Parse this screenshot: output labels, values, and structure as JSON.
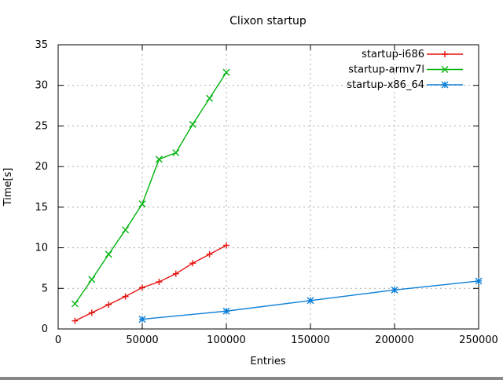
{
  "chart_data": {
    "type": "line",
    "title": "Clixon startup",
    "xlabel": "Entries",
    "ylabel": "Time[s]",
    "xlim": [
      0,
      250000
    ],
    "ylim": [
      0,
      35
    ],
    "xticks": [
      0,
      50000,
      100000,
      150000,
      200000,
      250000
    ],
    "yticks": [
      0,
      5,
      10,
      15,
      20,
      25,
      30,
      35
    ],
    "grid": true,
    "legend_position": "top-right-inside",
    "background": "#ffffff",
    "grid_color": "#ababab",
    "axis_color": "#000000",
    "series": [
      {
        "name": "startup-i686",
        "color": "#e81410",
        "marker": "plus",
        "points": [
          [
            10000,
            1.0
          ],
          [
            20000,
            2.0
          ],
          [
            30000,
            3.0
          ],
          [
            40000,
            4.0
          ],
          [
            50000,
            5.1
          ],
          [
            60000,
            5.8
          ],
          [
            70000,
            6.8
          ],
          [
            80000,
            8.1
          ],
          [
            90000,
            9.2
          ],
          [
            100000,
            10.3
          ]
        ]
      },
      {
        "name": "startup-armv7l",
        "color": "#00b40e",
        "marker": "cross",
        "points": [
          [
            10000,
            3.1
          ],
          [
            20000,
            6.1
          ],
          [
            30000,
            9.2
          ],
          [
            40000,
            12.2
          ],
          [
            50000,
            15.4
          ],
          [
            60000,
            20.9
          ],
          [
            70000,
            21.7
          ],
          [
            80000,
            25.2
          ],
          [
            90000,
            28.4
          ],
          [
            100000,
            31.6
          ]
        ]
      },
      {
        "name": "startup-x86_64",
        "color": "#0e7fd6",
        "marker": "star",
        "points": [
          [
            50000,
            1.2
          ],
          [
            100000,
            2.2
          ],
          [
            150000,
            3.5
          ],
          [
            200000,
            4.8
          ],
          [
            250000,
            5.9
          ]
        ]
      }
    ]
  }
}
